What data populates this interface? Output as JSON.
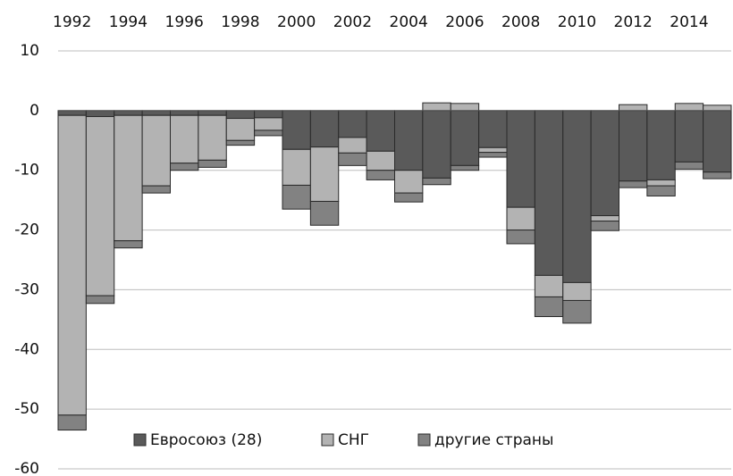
{
  "chart_data": {
    "type": "bar",
    "stacked": true,
    "categories": [
      "1992",
      null,
      "1994",
      null,
      "1996",
      null,
      "1998",
      null,
      "2000",
      null,
      "2002",
      null,
      "2004",
      null,
      "2006",
      null,
      "2008",
      null,
      "2010",
      null,
      "2012",
      null,
      "2014",
      null
    ],
    "series": [
      {
        "name": "Евросоюз (28)",
        "color": "#5a5a5a",
        "values": [
          -0.8,
          -1,
          -0.8,
          -0.8,
          -0.8,
          -0.8,
          -1.3,
          -1.2,
          -6.5,
          -6.1,
          -4.5,
          -6.8,
          -10,
          -11.3,
          -9.2,
          -6.2,
          -16.2,
          -27.6,
          -28.8,
          -17.6,
          -11.8,
          -11.6,
          -8.6,
          -10.3
        ]
      },
      {
        "name": "СНГ",
        "color": "#b3b3b3",
        "values": [
          -50.2,
          -30,
          -21,
          -11.8,
          -8,
          -7.5,
          -3.7,
          -2.1,
          -6,
          -9.1,
          -2.6,
          -3.2,
          -3.8,
          1.3,
          1.2,
          -0.8,
          -3.8,
          -3.6,
          -3,
          -0.9,
          1,
          -1,
          1.2,
          0.9
        ]
      },
      {
        "name": "другие страны",
        "color": "#828282",
        "values": [
          -2.5,
          -1.3,
          -1.2,
          -1.2,
          -1.2,
          -1.2,
          -0.8,
          -0.9,
          -4,
          -4,
          -2.1,
          -1.6,
          -1.5,
          -1.1,
          -0.8,
          -0.8,
          -2.3,
          -3.3,
          -3.8,
          -1.6,
          -1.1,
          -1.7,
          -1.2,
          -1.1
        ]
      }
    ],
    "ylim": [
      -60,
      10
    ],
    "yticks": [
      10,
      0,
      -10,
      -20,
      -30,
      -40,
      -50,
      -60
    ],
    "grid": true,
    "legend": "bottom-left"
  }
}
